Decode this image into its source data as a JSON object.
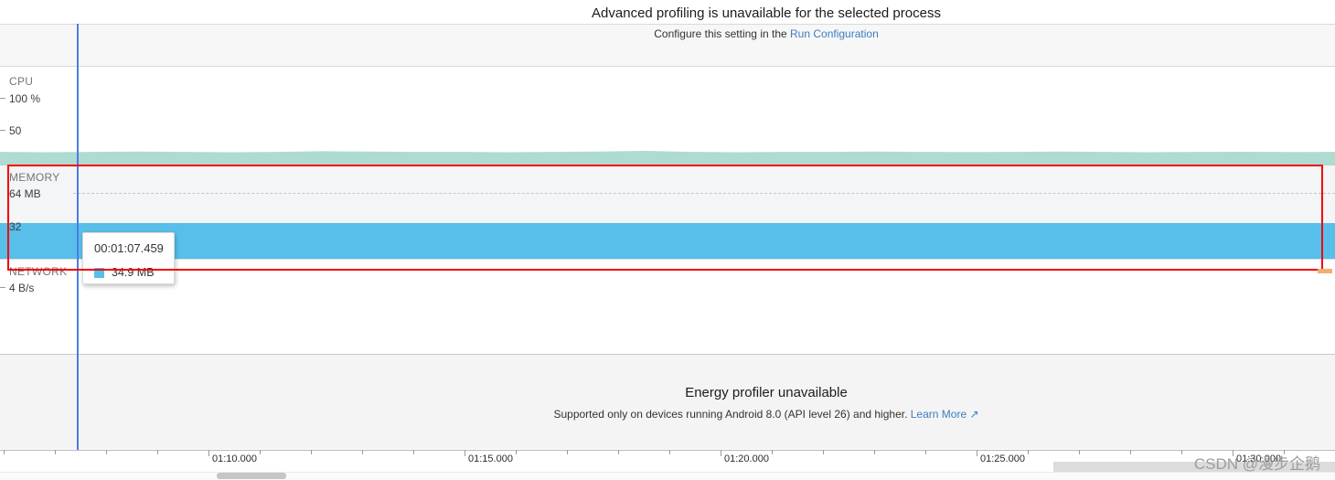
{
  "banner": {
    "title": "Advanced profiling is unavailable for the selected process",
    "subtitle_prefix": "Configure this setting in the ",
    "link_label": "Run Configuration"
  },
  "sections": {
    "cpu": {
      "label": "CPU",
      "tick_top": "100 %",
      "tick_mid": "50"
    },
    "memory": {
      "label": "MEMORY",
      "tick_top": "64 MB",
      "tick_mid": "32"
    },
    "network": {
      "label": "NETWORK",
      "tick_top": "4 B/s"
    }
  },
  "tooltip": {
    "time": "00:01:07.459",
    "value": "34.9 MB",
    "swatch_color": "#57bfe9"
  },
  "energy": {
    "title": "Energy profiler unavailable",
    "subtitle_prefix": "Supported only on devices running Android 8.0 (API level 26) and higher. ",
    "link_label": "Learn More ↗"
  },
  "timeline": {
    "labels": [
      "01:10.000",
      "01:15.000",
      "01:20.000",
      "01:25.000",
      "01:30.000"
    ]
  },
  "watermark": "CSDN @漫步企鹅",
  "colors": {
    "cpu_area": "#aedbd2",
    "memory_area": "#57bfe9",
    "selection_line": "#4b7de4",
    "annotation_red": "#f50000",
    "orange_marker": "#f0ae72",
    "link_blue": "#3d7dc0"
  },
  "chart_data": [
    {
      "type": "area",
      "name": "CPU",
      "unit": "%",
      "ylim": [
        0,
        100
      ],
      "yticks": [
        "100 %",
        "50"
      ],
      "values": [
        17,
        16.5,
        17,
        17.5,
        17,
        16.5,
        17,
        18,
        17.5,
        17,
        17,
        16.5,
        17,
        17.5,
        18.5,
        17,
        16.5,
        17,
        17,
        17.5,
        17,
        16.8,
        17,
        17.5,
        17,
        16.5,
        17,
        17.2,
        16.8,
        17
      ],
      "note": "approximately constant ~17% across visible window"
    },
    {
      "type": "area",
      "name": "MEMORY",
      "unit": "MB",
      "ylim": [
        0,
        64
      ],
      "yticks": [
        "64 MB",
        "32"
      ],
      "value_mb": 34.9,
      "selected_time": "00:01:07.459",
      "note": "flat band at ~34.9 MB across visible window"
    },
    {
      "type": "line",
      "name": "NETWORK",
      "unit": "B/s",
      "ylim": [
        0,
        4
      ],
      "yticks": [
        "4 B/s"
      ],
      "value": 0,
      "note": "no visible traffic in window"
    }
  ],
  "timeline_axis": {
    "visible_range": "approx 01:06 to 01:31",
    "major_tick_interval": "5 s",
    "minor_tick_interval": "1 s"
  }
}
